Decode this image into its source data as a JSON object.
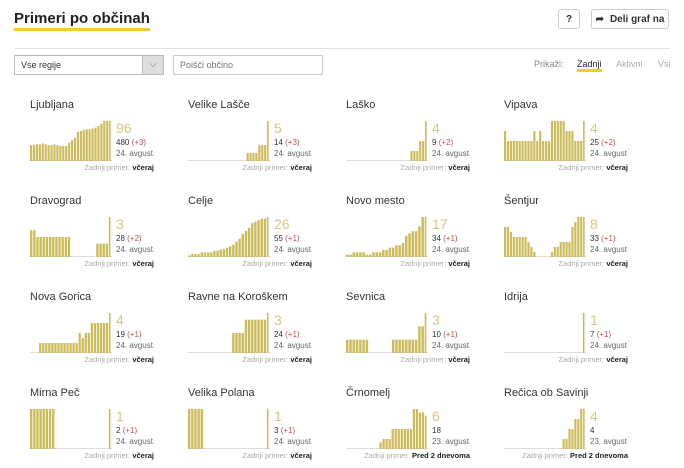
{
  "header": {
    "title": "Primeri po občinah",
    "help_label": "?",
    "share_label": "Deli graf na"
  },
  "filters": {
    "region_select": "Vse regije",
    "search_placeholder": "Poišči občino",
    "show_label": "Prikaži:",
    "options": [
      "Zadnji",
      "Aktivni",
      "Vsi"
    ],
    "active_option": "Zadnji"
  },
  "colors": {
    "bar": "#cdbb5a",
    "accent": "#f0cf2a",
    "increase": "#c0504d"
  },
  "footer_label": "Zadnji primer:",
  "municipalities": [
    {
      "name": "Ljubljana",
      "active": "96",
      "total": "480",
      "inc": "(+3)",
      "date": "24. avgust",
      "last": "včeraj",
      "series": [
        38,
        38,
        40,
        40,
        42,
        40,
        38,
        38,
        40,
        38,
        36,
        36,
        36,
        44,
        50,
        56,
        70,
        72,
        74,
        76,
        76,
        78,
        80,
        84,
        90,
        96,
        96,
        96
      ]
    },
    {
      "name": "Velike Lašče",
      "active": "5",
      "total": "14",
      "inc": "(+3)",
      "date": "24. avgust",
      "last": "včeraj",
      "series": [
        0,
        0,
        0,
        0,
        0,
        0,
        0,
        0,
        0,
        0,
        0,
        0,
        0,
        0,
        0,
        0,
        0,
        0,
        0,
        0,
        1,
        1,
        1,
        1,
        2,
        2,
        2,
        5
      ]
    },
    {
      "name": "Laško",
      "active": "4",
      "total": "9",
      "inc": "(+2)",
      "date": "24. avgust",
      "last": "včeraj",
      "series": [
        0,
        0,
        0,
        0,
        0,
        0,
        0,
        0,
        0,
        0,
        0,
        0,
        0,
        0,
        0,
        0,
        0,
        0,
        0,
        0,
        0,
        0,
        1,
        1,
        1,
        2,
        2,
        4
      ]
    },
    {
      "name": "Vipava",
      "active": "4",
      "total": "25",
      "inc": "(+2)",
      "date": "24. avgust",
      "last": "včeraj",
      "series": [
        3,
        2,
        2,
        2,
        2,
        2,
        2,
        2,
        2,
        2,
        3,
        2,
        3,
        2,
        2,
        2,
        4,
        4,
        4,
        4,
        4,
        3,
        3,
        3,
        2,
        2,
        2,
        4
      ]
    },
    {
      "name": "Dravograd",
      "active": "3",
      "total": "28",
      "inc": "(+2)",
      "date": "24. avgust",
      "last": "včeraj",
      "series": [
        2,
        2,
        1.5,
        1.5,
        1.5,
        1.5,
        1.5,
        1.5,
        1.5,
        1.5,
        1.5,
        1.5,
        1.5,
        0,
        0,
        0,
        0,
        0,
        0,
        0,
        0,
        1,
        1,
        1,
        1,
        3
      ]
    },
    {
      "name": "Celje",
      "active": "26",
      "total": "55",
      "inc": "(+1)",
      "date": "24. avgust",
      "last": "včeraj",
      "series": [
        1,
        2,
        2,
        2,
        3,
        3,
        3,
        3,
        4,
        4,
        5,
        5,
        6,
        7,
        8,
        10,
        12,
        15,
        17,
        19,
        22,
        23,
        24,
        25,
        25,
        26
      ]
    },
    {
      "name": "Novo mesto",
      "active": "17",
      "total": "34",
      "inc": "(+1)",
      "date": "24. avgust",
      "last": "včeraj",
      "series": [
        1,
        1,
        2,
        2,
        2,
        2,
        1,
        1,
        2,
        2,
        2,
        3,
        3,
        4,
        4,
        5,
        5,
        6,
        9,
        10,
        11,
        11,
        13,
        17,
        17
      ]
    },
    {
      "name": "Šentjur",
      "active": "8",
      "total": "33",
      "inc": "(+1)",
      "date": "24. avgust",
      "last": "včeraj",
      "series": [
        6,
        6,
        5,
        4,
        4,
        4,
        4,
        4,
        3,
        2,
        1,
        0,
        0,
        0,
        0,
        0,
        1,
        2,
        2,
        3,
        3,
        3,
        3,
        6,
        7,
        8,
        8,
        8
      ]
    },
    {
      "name": "Nova Gorica",
      "active": "4",
      "total": "19",
      "inc": "(+1)",
      "date": "24. avgust",
      "last": "včeraj",
      "series": [
        0,
        0,
        0,
        1,
        1,
        1,
        1,
        1,
        1,
        1,
        1,
        1,
        1,
        1,
        1,
        1,
        2,
        1.5,
        2,
        2,
        3,
        3,
        3,
        3,
        3,
        3,
        4
      ]
    },
    {
      "name": "Ravne na Koroškem",
      "active": "3",
      "total": "24",
      "inc": "(+1)",
      "date": "24. avgust",
      "last": "včeraj",
      "series": [
        0,
        0,
        0,
        0,
        0,
        0,
        0,
        0,
        0,
        0,
        0,
        0,
        0,
        0,
        1.5,
        1.5,
        1.5,
        1.5,
        2.5,
        2.5,
        2.5,
        2.5,
        2.5,
        2.5,
        2.5,
        3
      ]
    },
    {
      "name": "Sevnica",
      "active": "3",
      "total": "10",
      "inc": "(+1)",
      "date": "24. avgust",
      "last": "včeraj",
      "series": [
        1,
        1,
        1,
        1,
        1,
        1,
        1,
        0,
        0,
        0,
        0,
        0,
        0,
        0,
        1,
        1,
        1,
        1,
        1,
        1,
        1,
        1,
        2,
        2,
        3
      ]
    },
    {
      "name": "Idrija",
      "active": "1",
      "total": "7",
      "inc": "(+1)",
      "date": "24. avgust",
      "last": "včeraj",
      "series": [
        0,
        0,
        0,
        0,
        0,
        0,
        0,
        0,
        0,
        0,
        0,
        0,
        0,
        0,
        0,
        0,
        0,
        0,
        0,
        0,
        0,
        0,
        0,
        0,
        0,
        1
      ]
    },
    {
      "name": "Mirna Peč",
      "active": "1",
      "total": "2",
      "inc": "(+1)",
      "date": "24. avgust",
      "last": "včeraj",
      "series": [
        1,
        1,
        1,
        1,
        1,
        1,
        1,
        1,
        0,
        0,
        0,
        0,
        0,
        0,
        0,
        0,
        0,
        0,
        0,
        0,
        0,
        0,
        0,
        0,
        0,
        1
      ]
    },
    {
      "name": "Velika Polana",
      "active": "1",
      "total": "3",
      "inc": "(+1)",
      "date": "24. avgust",
      "last": "včeraj",
      "series": [
        1,
        1,
        1,
        1,
        1,
        0,
        0,
        0,
        0,
        0,
        0,
        0,
        0,
        0,
        0,
        0,
        0,
        0,
        0,
        0,
        0,
        0,
        0,
        0,
        0,
        1
      ]
    },
    {
      "name": "Črnomelj",
      "active": "6",
      "total": "18",
      "inc": "",
      "date": "23. avgust",
      "last": "Pred 2 dnevoma",
      "series": [
        0,
        0,
        0,
        0,
        0,
        0,
        0,
        0,
        0,
        0,
        0,
        1,
        1.5,
        1.5,
        1.5,
        3,
        3,
        3,
        3,
        3,
        3,
        3,
        6,
        6,
        5.5,
        5.5,
        5
      ]
    },
    {
      "name": "Rečica ob Savinji",
      "active": "4",
      "total": "4",
      "inc": "",
      "date": "23. avgust",
      "last": "Pred 2 dnevoma",
      "series": [
        0,
        0,
        0,
        0,
        0,
        0,
        0,
        0,
        0,
        0,
        0,
        0,
        0,
        0,
        0,
        0,
        0,
        0,
        0,
        0,
        1,
        1,
        2,
        2,
        3,
        3,
        4,
        4
      ]
    }
  ]
}
